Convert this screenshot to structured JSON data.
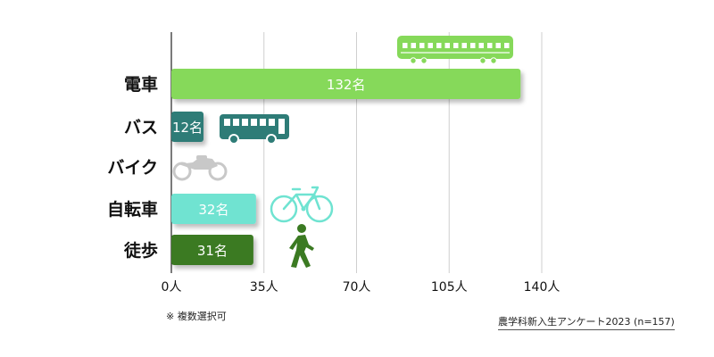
{
  "chart_data": {
    "type": "bar",
    "orientation": "horizontal",
    "categories": [
      "電車",
      "バス",
      "バイク",
      "自転車",
      "徒歩"
    ],
    "values": [
      132,
      12,
      0,
      32,
      31
    ],
    "value_labels": [
      "132名",
      "12名",
      "",
      "32名",
      "31名"
    ],
    "bar_colors": [
      "#86d95a",
      "#2e7c77",
      "#c8c8c8",
      "#6fe3d1",
      "#3b7a22"
    ],
    "icons": [
      "train-icon",
      "bus-icon",
      "motorcycle-icon",
      "bicycle-icon",
      "walking-person-icon"
    ],
    "xlim": [
      0,
      140
    ],
    "x_ticks": [
      0,
      35,
      70,
      105,
      140
    ],
    "x_tick_labels": [
      "0人",
      "35人",
      "70人",
      "105人",
      "140人"
    ],
    "grid": "vertical",
    "legend": "none"
  },
  "footnote": "※ 複数選択可",
  "source": "農学科新入生アンケート2023 (n=157)"
}
